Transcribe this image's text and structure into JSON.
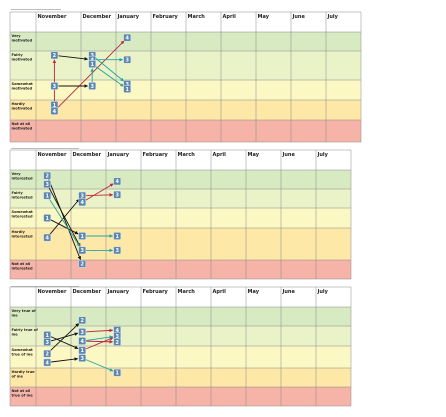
{
  "colors": {
    "row_green": "#d7eac2",
    "row_lightgreen": "#eaf3c7",
    "row_lightyellow": "#fbf8c4",
    "row_yellow": "#fde8a8",
    "row_red": "#f6b3a8",
    "badge": "#5d87ae",
    "arrow_black": "#111111",
    "arrow_red": "#c0233f",
    "arrow_teal": "#22a6a0",
    "grid_line": "#8a8a8a"
  },
  "months": [
    "November",
    "December",
    "January",
    "February",
    "March",
    "April",
    "May",
    "June",
    "July"
  ],
  "panels": [
    {
      "rows": [
        {
          "label": [
            "Very",
            "motivated"
          ],
          "color": "row_green"
        },
        {
          "label": [
            "Fairly",
            "motivated"
          ],
          "color": "row_lightgreen"
        },
        {
          "label": [
            "Somewhat",
            "motivated"
          ],
          "color": "row_lightyellow"
        },
        {
          "label": [
            "Hardly",
            "motivated"
          ],
          "color": "row_yellow"
        },
        {
          "label": [
            "Not at all",
            "motivated"
          ],
          "color": "row_red"
        }
      ],
      "badges": [
        {
          "text": "4",
          "col": 2,
          "row": 0,
          "s": 0.3
        },
        {
          "text": "2",
          "col": 0,
          "row": 1,
          "s": 0.15
        },
        {
          "text": "3",
          "col": 1,
          "row": 1,
          "s": 0.15
        },
        {
          "text": "4",
          "col": 1,
          "row": 1,
          "s": 0.3
        },
        {
          "text": "1",
          "col": 1,
          "row": 1,
          "s": 0.45
        },
        {
          "text": "3",
          "col": 2,
          "row": 1,
          "s": 0.3
        },
        {
          "text": "3",
          "col": 0,
          "row": 2,
          "s": 0.3
        },
        {
          "text": "3",
          "col": 1,
          "row": 2,
          "s": 0.3
        },
        {
          "text": "3",
          "col": 2,
          "row": 2,
          "s": 0.2
        },
        {
          "text": "1",
          "col": 2,
          "row": 2,
          "s": 0.45
        },
        {
          "text": "1",
          "col": 0,
          "row": 3,
          "s": 0.25
        },
        {
          "text": "4",
          "col": 0,
          "row": 3,
          "s": 0.55
        }
      ],
      "arrows": [
        {
          "from": 10,
          "to": 1,
          "color": "arrow_red"
        },
        {
          "from": 11,
          "to": 0,
          "color": "arrow_red"
        },
        {
          "from": 1,
          "to": 3,
          "color": "arrow_black"
        },
        {
          "from": 6,
          "to": 7,
          "color": "arrow_black"
        },
        {
          "from": 3,
          "to": 5,
          "color": "arrow_teal"
        },
        {
          "from": 4,
          "to": 9,
          "color": "arrow_teal"
        },
        {
          "from": 7,
          "to": 4,
          "color": "arrow_teal"
        },
        {
          "from": 2,
          "to": 8,
          "color": "arrow_teal"
        }
      ]
    },
    {
      "rows": [
        {
          "label": [
            "Very",
            "interested"
          ],
          "color": "row_green"
        },
        {
          "label": [
            "Fairly",
            "interested"
          ],
          "color": "row_lightgreen"
        },
        {
          "label": [
            "Somewhat",
            "interested"
          ],
          "color": "row_lightyellow"
        },
        {
          "label": [
            "Hardly",
            "interested"
          ],
          "color": "row_yellow"
        },
        {
          "label": [
            "Not at all",
            "interested"
          ],
          "color": "row_red"
        }
      ],
      "badges": [
        {
          "text": "2",
          "col": 0,
          "row": 0,
          "s": 0.3
        },
        {
          "text": "3",
          "col": 0,
          "row": 0,
          "s": 0.75
        },
        {
          "text": "4",
          "col": 2,
          "row": 0,
          "s": 0.6
        },
        {
          "text": "1",
          "col": 0,
          "row": 1,
          "s": 0.35
        },
        {
          "text": "3",
          "col": 1,
          "row": 1,
          "s": 0.35
        },
        {
          "text": "4",
          "col": 1,
          "row": 1,
          "s": 0.7
        },
        {
          "text": "3",
          "col": 2,
          "row": 1,
          "s": 0.3
        },
        {
          "text": "1",
          "col": 0,
          "row": 2,
          "s": 0.5
        },
        {
          "text": "4",
          "col": 0,
          "row": 3,
          "s": 0.3
        },
        {
          "text": "1",
          "col": 1,
          "row": 3,
          "s": 0.25
        },
        {
          "text": "3",
          "col": 1,
          "row": 3,
          "s": 0.7
        },
        {
          "text": "1",
          "col": 2,
          "row": 3,
          "s": 0.25
        },
        {
          "text": "2",
          "col": 1,
          "row": 4,
          "s": 0.2
        },
        {
          "text": "3",
          "col": 2,
          "row": 3,
          "s": 0.7
        }
      ],
      "arrows": [
        {
          "from": 0,
          "to": 12,
          "color": "arrow_black"
        },
        {
          "from": 1,
          "to": 10,
          "color": "arrow_black"
        },
        {
          "from": 8,
          "to": 4,
          "color": "arrow_black"
        },
        {
          "from": 7,
          "to": 9,
          "color": "arrow_black"
        },
        {
          "from": 5,
          "to": 2,
          "color": "arrow_red"
        },
        {
          "from": 4,
          "to": 6,
          "color": "arrow_red"
        },
        {
          "from": 9,
          "to": 11,
          "color": "arrow_teal"
        },
        {
          "from": 10,
          "to": 13,
          "color": "arrow_teal"
        },
        {
          "from": 3,
          "to": 10,
          "color": "arrow_teal"
        }
      ]
    },
    {
      "rows": [
        {
          "label": [
            "Very true of",
            "me"
          ],
          "color": "row_green"
        },
        {
          "label": [
            "Fairly true of",
            "me"
          ],
          "color": "row_lightgreen"
        },
        {
          "label": [
            "Somewhat",
            "true of me"
          ],
          "color": "row_lightyellow"
        },
        {
          "label": [
            "Hardly true",
            "of me"
          ],
          "color": "row_yellow"
        },
        {
          "label": [
            "Not at all",
            "true of me"
          ],
          "color": "row_red"
        }
      ],
      "badges": [
        {
          "text": "2",
          "col": 1,
          "row": 0,
          "s": 0.7
        },
        {
          "text": "1",
          "col": 0,
          "row": 1,
          "s": 0.45
        },
        {
          "text": "3",
          "col": 0,
          "row": 1,
          "s": 0.8
        },
        {
          "text": "3",
          "col": 1,
          "row": 1,
          "s": 0.3
        },
        {
          "text": "4",
          "col": 1,
          "row": 1,
          "s": 0.75
        },
        {
          "text": "4",
          "col": 2,
          "row": 1,
          "s": 0.2
        },
        {
          "text": "3",
          "col": 2,
          "row": 1,
          "s": 0.5
        },
        {
          "text": "2",
          "col": 2,
          "row": 1,
          "s": 0.8
        },
        {
          "text": "2",
          "col": 0,
          "row": 2,
          "s": 0.35
        },
        {
          "text": "4",
          "col": 0,
          "row": 2,
          "s": 0.75
        },
        {
          "text": "1",
          "col": 1,
          "row": 2,
          "s": 0.2
        },
        {
          "text": "3",
          "col": 1,
          "row": 2,
          "s": 0.55
        },
        {
          "text": "1",
          "col": 2,
          "row": 3,
          "s": 0.25
        }
      ],
      "arrows": [
        {
          "from": 8,
          "to": 0,
          "color": "arrow_black"
        },
        {
          "from": 2,
          "to": 3,
          "color": "arrow_black"
        },
        {
          "from": 9,
          "to": 11,
          "color": "arrow_black"
        },
        {
          "from": 1,
          "to": 10,
          "color": "arrow_black"
        },
        {
          "from": 3,
          "to": 5,
          "color": "arrow_red"
        },
        {
          "from": 4,
          "to": 7,
          "color": "arrow_red"
        },
        {
          "from": 10,
          "to": 6,
          "color": "arrow_red"
        },
        {
          "from": 11,
          "to": 12,
          "color": "arrow_teal"
        },
        {
          "from": 4,
          "to": 6,
          "color": "arrow_teal"
        }
      ]
    }
  ]
}
